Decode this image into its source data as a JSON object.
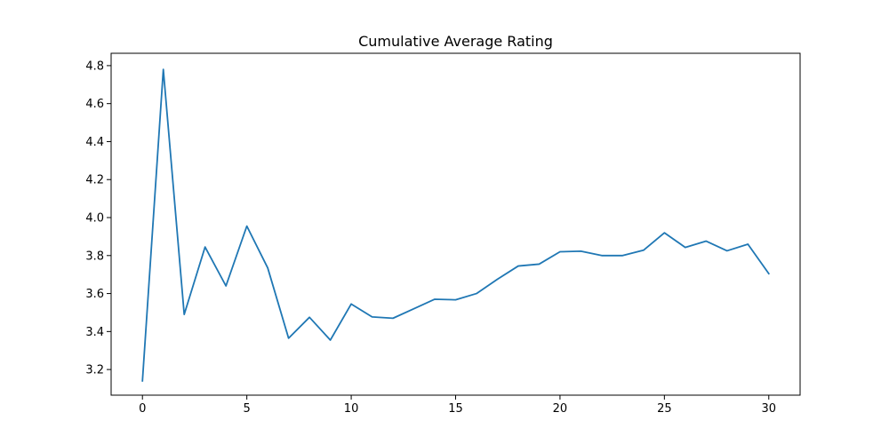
{
  "chart_data": {
    "type": "line",
    "title": "Cumulative Average Rating",
    "xlabel": "",
    "ylabel": "",
    "xlim": [
      -1.5,
      31.5
    ],
    "ylim": [
      3.065,
      4.865
    ],
    "xticks": [
      0,
      5,
      10,
      15,
      20,
      25,
      30
    ],
    "xtick_labels": [
      "0",
      "5",
      "10",
      "15",
      "20",
      "25",
      "30"
    ],
    "yticks": [
      3.2,
      3.4,
      3.6,
      3.8,
      4.0,
      4.2,
      4.4,
      4.6,
      4.8
    ],
    "ytick_labels": [
      "3.2",
      "3.4",
      "3.6",
      "3.8",
      "4.0",
      "4.2",
      "4.4",
      "4.6",
      "4.8"
    ],
    "grid": false,
    "legend": "none",
    "line_color": "#1f77b4",
    "x": [
      0,
      1,
      2,
      3,
      4,
      5,
      6,
      7,
      8,
      9,
      10,
      11,
      12,
      13,
      14,
      15,
      16,
      17,
      18,
      19,
      20,
      21,
      22,
      23,
      24,
      25,
      26,
      27,
      28,
      29,
      30
    ],
    "y": [
      3.14,
      4.78,
      3.49,
      3.845,
      3.64,
      3.955,
      3.735,
      3.365,
      3.475,
      3.355,
      3.545,
      3.477,
      3.47,
      3.52,
      3.57,
      3.567,
      3.6,
      3.675,
      3.745,
      3.755,
      3.82,
      3.823,
      3.8,
      3.8,
      3.828,
      3.92,
      3.843,
      3.876,
      3.825,
      3.86,
      3.705
    ]
  }
}
